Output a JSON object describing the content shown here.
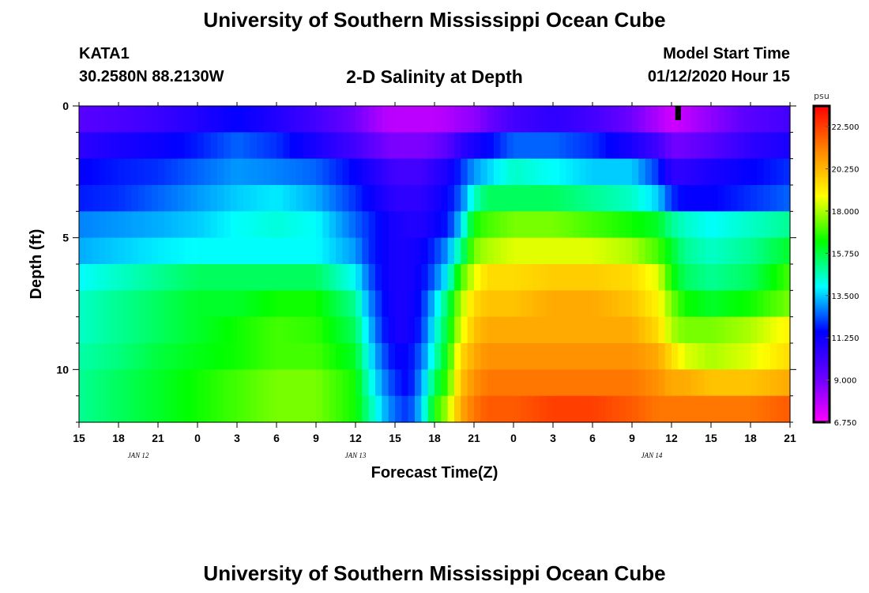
{
  "page": {
    "title_top": "University of Southern Mississippi Ocean Cube",
    "title_bottom": "University of Southern Mississippi Ocean Cube",
    "station_id": "KATA1",
    "coordinates": "30.2580N 88.2130W",
    "plot_title": "2-D Salinity at Depth",
    "model_start_label": "Model Start Time",
    "model_start_value": "01/12/2020 Hour 15"
  },
  "chart_data": {
    "type": "heatmap",
    "title": "2-D Salinity at Depth",
    "xlabel": "Forecast Time(Z)",
    "ylabel": "Depth (ft)",
    "x_unit": "forecast hour from 01/12/2020 15Z",
    "x_range": [
      0,
      54
    ],
    "x_ticks": [
      {
        "hour": 0,
        "label": "15"
      },
      {
        "hour": 3,
        "label": "18"
      },
      {
        "hour": 6,
        "label": "21"
      },
      {
        "hour": 9,
        "label": "0"
      },
      {
        "hour": 12,
        "label": "3"
      },
      {
        "hour": 15,
        "label": "6"
      },
      {
        "hour": 18,
        "label": "9"
      },
      {
        "hour": 21,
        "label": "12"
      },
      {
        "hour": 24,
        "label": "15"
      },
      {
        "hour": 27,
        "label": "18"
      },
      {
        "hour": 30,
        "label": "21"
      },
      {
        "hour": 33,
        "label": "0"
      },
      {
        "hour": 36,
        "label": "3"
      },
      {
        "hour": 39,
        "label": "6"
      },
      {
        "hour": 42,
        "label": "9"
      },
      {
        "hour": 45,
        "label": "12"
      },
      {
        "hour": 48,
        "label": "15"
      },
      {
        "hour": 51,
        "label": "18"
      },
      {
        "hour": 54,
        "label": "21"
      }
    ],
    "date_labels": [
      {
        "hour": 4.5,
        "label": "JAN 12"
      },
      {
        "hour": 21,
        "label": "JAN 13"
      },
      {
        "hour": 43.5,
        "label": "JAN 14"
      }
    ],
    "y_range": [
      0,
      12
    ],
    "y_ticks": [
      0,
      5,
      10
    ],
    "depth_levels": [
      0,
      1,
      2,
      3,
      4,
      5,
      6,
      7,
      8,
      9,
      10,
      11
    ],
    "colorbar": {
      "unit": "psu",
      "min": 6.75,
      "max": 23.6,
      "tick_labels": [
        "6.750",
        "9.000",
        "11.250",
        "13.500",
        "15.750",
        "18.000",
        "20.250",
        "22.500"
      ],
      "colors": [
        "#ff00ff",
        "#6600ff",
        "#0000ff",
        "#00ffff",
        "#00ff00",
        "#ffff00",
        "#ff8800",
        "#ff0000"
      ]
    },
    "current_time_hour": 45.5,
    "profiles": {
      "hours": [
        0,
        3,
        6,
        9,
        12,
        15,
        18,
        21,
        22,
        23,
        24,
        25,
        26,
        27,
        28,
        29,
        30,
        31,
        33,
        36,
        39,
        42,
        44,
        45,
        46,
        48,
        51,
        54
      ],
      "salinity": [
        [
          9.5,
          9.8,
          10.2,
          10.8,
          11.5,
          10.8,
          10.0,
          9.0,
          8.5,
          8.0,
          7.8,
          7.8,
          7.8,
          7.8,
          8.0,
          8.3,
          8.5,
          9.0,
          10.0,
          10.5,
          10.0,
          9.0,
          8.0,
          7.5,
          7.8,
          8.5,
          9.5,
          10.0
        ],
        [
          10.5,
          11.0,
          11.3,
          11.8,
          12.5,
          12.0,
          11.0,
          10.0,
          9.5,
          9.0,
          8.8,
          8.8,
          8.8,
          9.0,
          9.5,
          10.5,
          11.0,
          11.5,
          12.5,
          12.5,
          12.0,
          11.0,
          10.0,
          9.0,
          9.0,
          9.5,
          10.5,
          11.0
        ],
        [
          11.5,
          11.8,
          12.0,
          12.5,
          13.0,
          12.8,
          12.5,
          11.5,
          11.0,
          10.5,
          10.0,
          10.0,
          10.0,
          10.5,
          11.0,
          12.0,
          13.0,
          13.5,
          14.5,
          14.0,
          13.5,
          13.5,
          12.0,
          10.5,
          10.5,
          11.0,
          11.5,
          12.0
        ],
        [
          11.8,
          12.0,
          12.5,
          13.0,
          13.5,
          13.8,
          13.2,
          12.0,
          11.5,
          11.0,
          10.5,
          10.5,
          10.5,
          11.0,
          11.5,
          12.5,
          14.5,
          15.5,
          15.5,
          15.5,
          15.0,
          14.5,
          13.5,
          12.0,
          11.5,
          11.5,
          12.0,
          12.5
        ],
        [
          12.8,
          13.0,
          13.2,
          13.5,
          14.0,
          14.3,
          14.0,
          12.5,
          12.0,
          11.5,
          11.0,
          10.8,
          10.8,
          11.3,
          11.8,
          13.5,
          16.5,
          17.0,
          17.5,
          17.5,
          17.0,
          16.5,
          16.0,
          15.0,
          14.5,
          14.0,
          14.5,
          15.0
        ],
        [
          13.2,
          13.5,
          13.8,
          14.0,
          14.0,
          14.0,
          14.0,
          13.0,
          12.0,
          11.5,
          11.0,
          11.0,
          11.3,
          12.0,
          13.0,
          15.0,
          17.5,
          18.0,
          18.5,
          18.5,
          18.5,
          18.0,
          17.0,
          16.0,
          15.0,
          14.5,
          15.0,
          16.0
        ],
        [
          14.0,
          14.5,
          15.0,
          15.5,
          15.5,
          15.5,
          15.5,
          14.0,
          12.5,
          11.5,
          11.0,
          11.0,
          11.5,
          12.5,
          14.0,
          17.0,
          18.5,
          19.5,
          19.5,
          19.8,
          19.8,
          19.5,
          18.5,
          16.5,
          15.5,
          15.0,
          15.5,
          17.0
        ],
        [
          14.5,
          15.0,
          15.5,
          16.0,
          16.0,
          16.5,
          16.5,
          15.0,
          13.0,
          11.8,
          11.0,
          11.0,
          11.8,
          13.5,
          15.5,
          18.0,
          19.5,
          20.0,
          20.0,
          20.5,
          20.5,
          20.0,
          19.0,
          17.5,
          16.5,
          16.0,
          16.5,
          17.5
        ],
        [
          14.5,
          15.0,
          15.5,
          16.0,
          16.5,
          17.0,
          16.8,
          15.5,
          13.5,
          12.0,
          11.0,
          11.0,
          12.0,
          14.0,
          16.0,
          18.5,
          20.0,
          20.5,
          20.5,
          20.5,
          20.5,
          20.5,
          19.5,
          18.0,
          17.5,
          17.5,
          18.0,
          19.0
        ],
        [
          14.8,
          15.2,
          15.8,
          16.2,
          16.5,
          17.0,
          17.0,
          16.0,
          14.0,
          12.5,
          11.5,
          11.5,
          12.5,
          14.5,
          16.5,
          19.5,
          20.5,
          21.0,
          21.0,
          21.0,
          21.0,
          21.0,
          20.5,
          19.5,
          18.5,
          18.0,
          18.5,
          19.5
        ],
        [
          15.0,
          15.5,
          16.0,
          16.5,
          17.0,
          17.5,
          17.5,
          16.5,
          14.5,
          13.0,
          12.0,
          11.5,
          13.0,
          15.5,
          17.0,
          20.0,
          21.0,
          21.5,
          21.5,
          21.5,
          21.5,
          21.5,
          21.0,
          20.5,
          20.5,
          20.0,
          20.0,
          20.5
        ],
        [
          15.0,
          15.5,
          16.0,
          16.5,
          17.0,
          17.5,
          17.5,
          16.5,
          15.0,
          13.5,
          12.5,
          12.0,
          13.5,
          16.5,
          18.0,
          20.5,
          21.5,
          22.0,
          22.0,
          22.5,
          22.5,
          22.0,
          21.5,
          21.5,
          21.5,
          21.5,
          21.5,
          22.0
        ]
      ]
    }
  }
}
